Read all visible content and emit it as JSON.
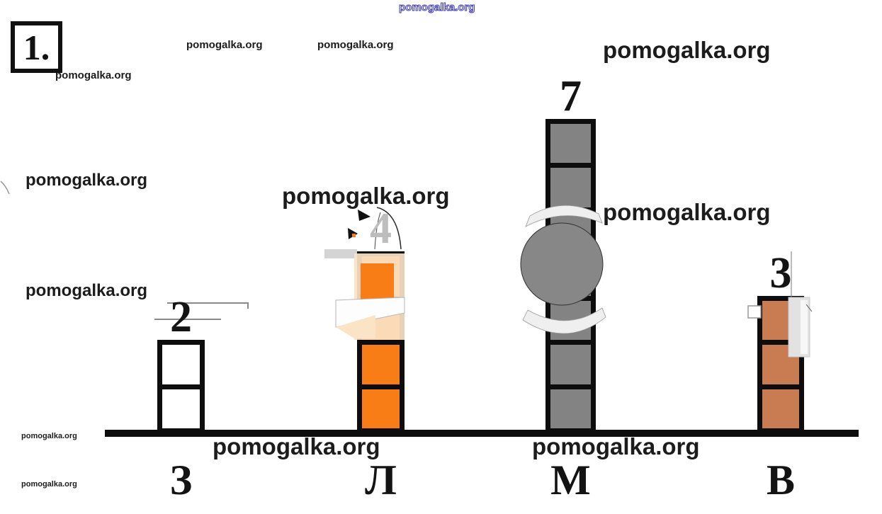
{
  "problem_number": "1.",
  "watermark_text": "pomogalka.org",
  "colors": {
    "background": "#ffffff",
    "block_border": "#0d0d0d",
    "axis": "#0d0d0d",
    "watermark_ink": "#1c1c1c",
    "watermark_outline_blue": "#4444bb",
    "ghost_gray": "#e2e2e2",
    "ghost_cream": "#fbe3c6"
  },
  "chart_data": {
    "type": "bar",
    "style": "stacked-unit-blocks",
    "orientation": "vertical",
    "categories": [
      "З",
      "Л",
      "М",
      "В"
    ],
    "values": [
      2,
      4,
      7,
      3
    ],
    "data_labels": [
      "2",
      "4",
      "7",
      "3"
    ],
    "bar_colors": [
      "#ffffff",
      "#f97d17",
      "#838383",
      "#c97b52"
    ],
    "value_label_colors": [
      "#141414",
      "#bdbdbd",
      "#141414",
      "#141414"
    ],
    "title": "",
    "xlabel": "",
    "ylabel": "",
    "ylim": [
      0,
      7
    ],
    "grid": false,
    "legend": false
  }
}
